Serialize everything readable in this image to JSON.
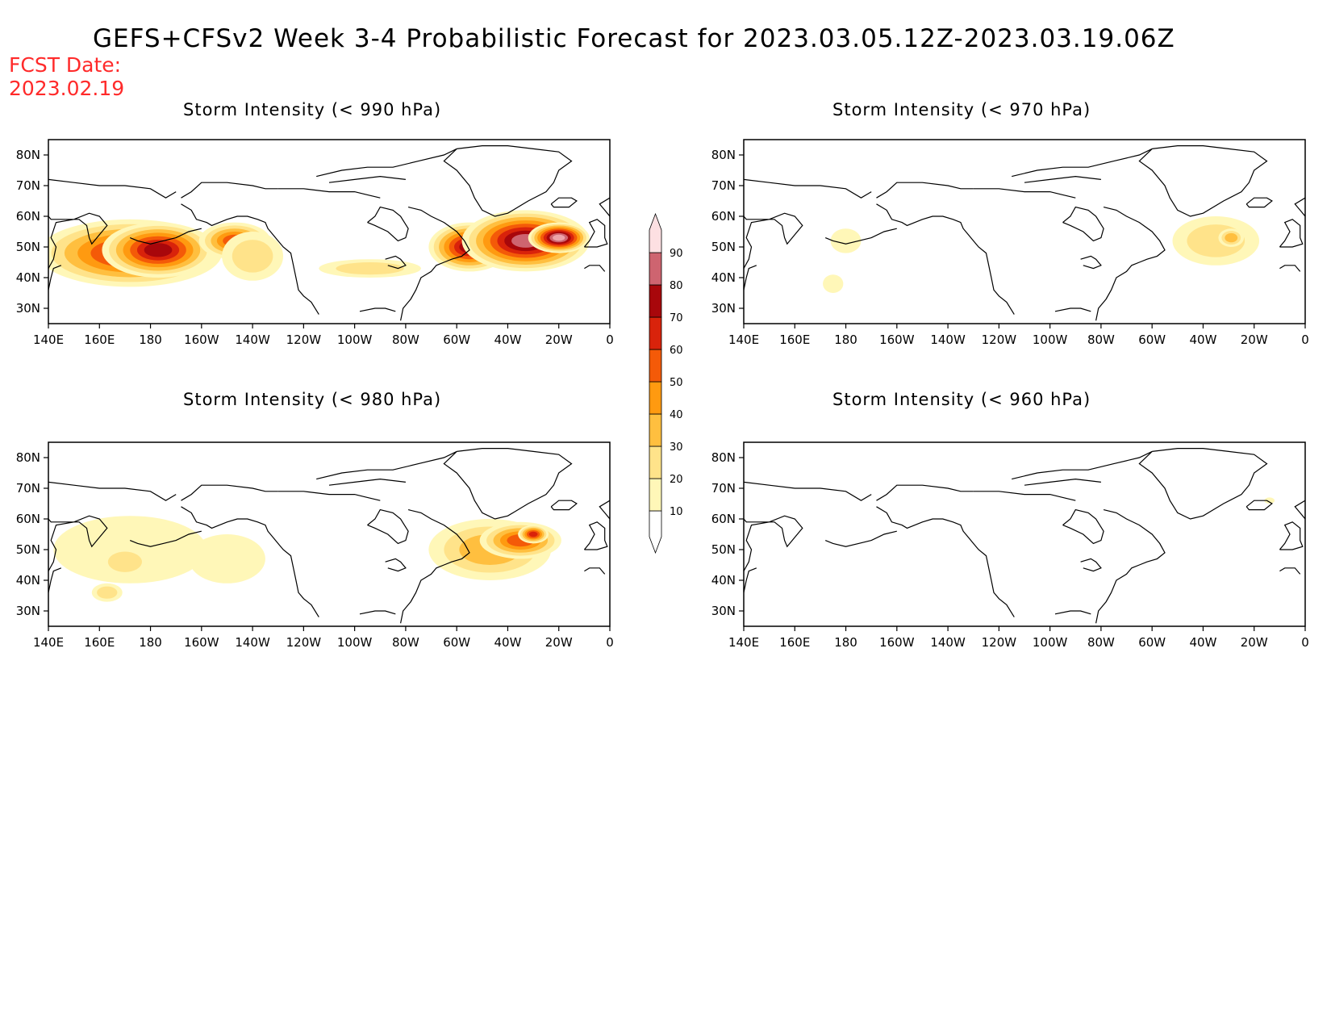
{
  "title": "GEFS+CFSv2 Week 3-4 Probabilistic Forecast for 2023.03.05.12Z-2023.03.19.06Z",
  "fcst_label": "FCST Date:",
  "fcst_date": "2023.02.19",
  "colors": {
    "c10": "#fff7b8",
    "c20": "#ffe38a",
    "c30": "#ffbf3f",
    "c40": "#ff9a10",
    "c50": "#f45a08",
    "c60": "#d9230b",
    "c70": "#a8070b",
    "c80": "#ce6470",
    "c90": "#eda3aa",
    "c100": "#fde0e2"
  },
  "colorbar": {
    "levels": [
      "10",
      "20",
      "30",
      "40",
      "50",
      "60",
      "70",
      "80",
      "90"
    ]
  },
  "x_ticks": [
    "140E",
    "160E",
    "180",
    "160W",
    "140W",
    "120W",
    "100W",
    "80W",
    "60W",
    "40W",
    "20W",
    "0"
  ],
  "y_ticks": [
    "80N",
    "70N",
    "60N",
    "50N",
    "40N",
    "30N"
  ],
  "panels": [
    {
      "id": "p990",
      "title": "Storm Intensity (< 990 hPa)",
      "blobs": [
        {
          "lon": 172,
          "lat": 48,
          "rx": 36,
          "ry": 11,
          "level": 6
        },
        {
          "lon": 183,
          "lat": 49,
          "rx": 22,
          "ry": 9,
          "level": 7
        },
        {
          "lon": 213,
          "lat": 52,
          "rx": 14,
          "ry": 6,
          "level": 5
        },
        {
          "lon": 220,
          "lat": 47,
          "rx": 12,
          "ry": 8,
          "level": 2
        },
        {
          "lon": 266,
          "lat": 43,
          "rx": 20,
          "ry": 3,
          "level": 2
        },
        {
          "lon": 305,
          "lat": 50,
          "rx": 16,
          "ry": 8,
          "level": 7
        },
        {
          "lon": 327,
          "lat": 52,
          "rx": 25,
          "ry": 10,
          "level": 8
        },
        {
          "lon": 340,
          "lat": 53,
          "rx": 12,
          "ry": 5,
          "level": 9
        }
      ]
    },
    {
      "id": "p970",
      "title": "Storm Intensity (< 970 hPa)",
      "blobs": [
        {
          "lon": 180,
          "lat": 52,
          "rx": 6,
          "ry": 4,
          "level": 1
        },
        {
          "lon": 175,
          "lat": 38,
          "rx": 4,
          "ry": 3,
          "level": 1
        },
        {
          "lon": 325,
          "lat": 52,
          "rx": 17,
          "ry": 8,
          "level": 2
        },
        {
          "lon": 331,
          "lat": 53,
          "rx": 5,
          "ry": 3,
          "level": 3
        }
      ]
    },
    {
      "id": "p980",
      "title": "Storm Intensity (< 980 hPa)",
      "blobs": [
        {
          "lon": 172,
          "lat": 50,
          "rx": 30,
          "ry": 11,
          "level": 1
        },
        {
          "lon": 170,
          "lat": 46,
          "rx": 10,
          "ry": 5,
          "level": 2
        },
        {
          "lon": 163,
          "lat": 36,
          "rx": 6,
          "ry": 3,
          "level": 2
        },
        {
          "lon": 210,
          "lat": 47,
          "rx": 15,
          "ry": 8,
          "level": 1
        },
        {
          "lon": 313,
          "lat": 50,
          "rx": 24,
          "ry": 10,
          "level": 3
        },
        {
          "lon": 325,
          "lat": 53,
          "rx": 16,
          "ry": 6,
          "level": 5
        },
        {
          "lon": 330,
          "lat": 55,
          "rx": 6,
          "ry": 3,
          "level": 6
        }
      ]
    },
    {
      "id": "p960",
      "title": "Storm Intensity (< 960 hPa)",
      "blobs": [
        {
          "lon": 346,
          "lat": 66,
          "rx": 2,
          "ry": 1,
          "level": 1
        }
      ]
    }
  ]
}
